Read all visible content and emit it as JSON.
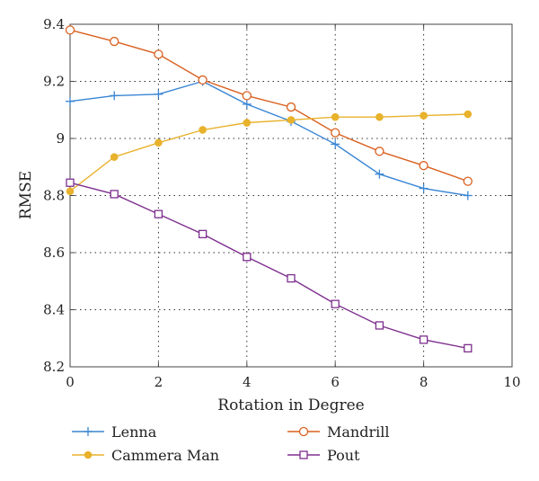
{
  "chart_data": {
    "type": "line",
    "xlabel": "Rotation in Degree",
    "ylabel": "RMSE",
    "xlim": [
      0,
      10
    ],
    "ylim": [
      8.2,
      9.4
    ],
    "x_ticks": [
      0,
      2,
      4,
      6,
      8,
      10
    ],
    "y_ticks": [
      8.2,
      8.4,
      8.6,
      8.8,
      9,
      9.2,
      9.4
    ],
    "x_tick_labels": [
      "0",
      "2",
      "4",
      "6",
      "8",
      "10"
    ],
    "y_tick_labels": [
      "8.2",
      "8.4",
      "8.6",
      "8.8",
      "9",
      "9.2",
      "9.4"
    ],
    "grid": "dotted",
    "legend_position": "bottom",
    "x": [
      0,
      1,
      2,
      3,
      4,
      5,
      6,
      7,
      8,
      9
    ],
    "series": [
      {
        "name": "Lenna",
        "color": "#3a86d4",
        "marker": "plus",
        "values": [
          9.13,
          9.15,
          9.155,
          9.2,
          9.12,
          9.06,
          8.98,
          8.875,
          8.825,
          8.8
        ]
      },
      {
        "name": "Mandrill",
        "color": "#d9601f",
        "marker": "circle",
        "values": [
          9.38,
          9.34,
          9.295,
          9.205,
          9.15,
          9.11,
          9.02,
          8.955,
          8.905,
          8.85
        ]
      },
      {
        "name": "Cammera Man",
        "color": "#e8b22c",
        "marker": "dot",
        "values": [
          8.815,
          8.935,
          8.985,
          9.03,
          9.055,
          9.065,
          9.075,
          9.075,
          9.08,
          9.085
        ]
      },
      {
        "name": "Pout",
        "color": "#7e2f8e",
        "marker": "square",
        "values": [
          8.845,
          8.805,
          8.735,
          8.665,
          8.585,
          8.51,
          8.42,
          8.345,
          8.295,
          8.265
        ]
      }
    ]
  }
}
